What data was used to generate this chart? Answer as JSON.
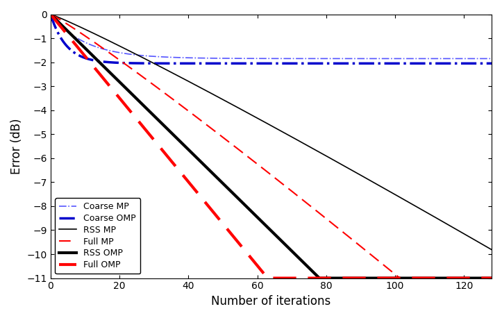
{
  "title": "",
  "xlabel": "Number of iterations",
  "ylabel": "Error (dB)",
  "xlim": [
    0,
    128
  ],
  "ylim": [
    -11,
    0
  ],
  "yticks": [
    0,
    -1,
    -2,
    -3,
    -4,
    -5,
    -6,
    -7,
    -8,
    -9,
    -10,
    -11
  ],
  "xticks": [
    0,
    20,
    40,
    60,
    80,
    100,
    120
  ],
  "background_color": "#ffffff",
  "legend_loc": "lower left",
  "coarse_mp_final": -1.85,
  "coarse_mp_rate": 0.1,
  "coarse_omp_final": -2.05,
  "coarse_omp_rate": 0.22,
  "rss_mp_a": 0.052,
  "rss_mp_b": 1.08,
  "full_mp_a": 0.075,
  "full_mp_b": 1.08,
  "rss_omp_hit_x": 78,
  "full_omp_hit_x": 63,
  "series": {
    "coarse_mp": {
      "label": "Coarse MP",
      "color": "#5555ff",
      "linestyle": "-.",
      "linewidth": 1.2
    },
    "coarse_omp": {
      "label": "Coarse OMP",
      "color": "#0000cc",
      "linestyle": "-.",
      "linewidth": 2.5
    },
    "rss_mp": {
      "label": "RSS MP",
      "color": "#000000",
      "linestyle": "-",
      "linewidth": 1.2
    },
    "full_mp": {
      "label": "Full MP",
      "color": "#ff0000",
      "linestyle": "--",
      "linewidth": 1.5
    },
    "rss_omp": {
      "label": "RSS OMP",
      "color": "#000000",
      "linestyle": "-",
      "linewidth": 3.0
    },
    "full_omp": {
      "label": "Full OMP",
      "color": "#ff0000",
      "linestyle": "--",
      "linewidth": 3.0
    }
  }
}
